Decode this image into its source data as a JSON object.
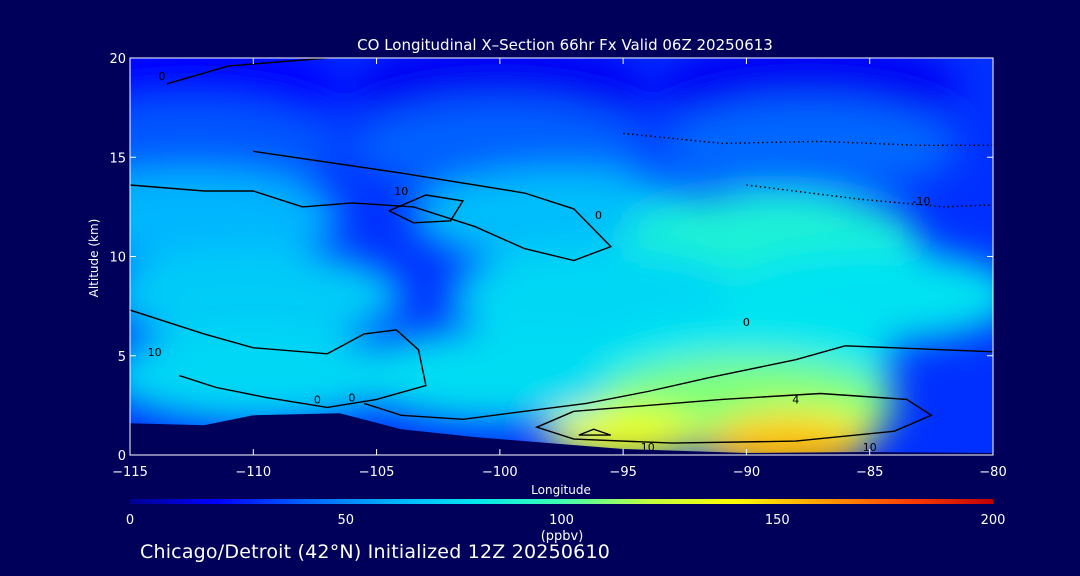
{
  "chart_data": {
    "type": "heatmap",
    "title": "CO Longitudinal X–Section 66hr  Fx Valid 06Z 20250613",
    "xlabel": "Longitude",
    "ylabel": "Altitude (km)",
    "xlim": [
      -115,
      -80
    ],
    "ylim": [
      0,
      20
    ],
    "x_ticks": [
      -115,
      -110,
      -105,
      -100,
      -95,
      -90,
      -85,
      -80
    ],
    "x_tick_labels": [
      "−115",
      "−110",
      "−105",
      "−100",
      "−95",
      "−90",
      "−85",
      "−80"
    ],
    "y_ticks": [
      0,
      5,
      10,
      15,
      20
    ],
    "y_tick_labels": [
      "0",
      "5",
      "10",
      "15",
      "20"
    ],
    "colorbar": {
      "min": 0,
      "max": 200,
      "ticks": [
        0,
        50,
        100,
        150,
        200
      ],
      "tick_labels": [
        "0",
        "50",
        "100",
        "150",
        "200"
      ],
      "unit": "(ppbv)",
      "colors": [
        "#000090",
        "#0000ff",
        "#0060ff",
        "#00b0ff",
        "#00e8f0",
        "#40ffb0",
        "#c0ff40",
        "#ffff00",
        "#ffa000",
        "#ff4000",
        "#c00000"
      ]
    },
    "co_field": [
      {
        "lon": -112.5,
        "alt": 18.5,
        "co": 20
      },
      {
        "lon": -100.0,
        "alt": 18.5,
        "co": 18
      },
      {
        "lon": -87.5,
        "alt": 18.5,
        "co": 18
      },
      {
        "lon": -112.5,
        "alt": 15.5,
        "co": 38
      },
      {
        "lon": -100.0,
        "alt": 15.5,
        "co": 40
      },
      {
        "lon": -87.5,
        "alt": 15.5,
        "co": 42
      },
      {
        "lon": -112.5,
        "alt": 12.0,
        "co": 62
      },
      {
        "lon": -97.5,
        "alt": 12.0,
        "co": 65
      },
      {
        "lon": -89.0,
        "alt": 10.8,
        "co": 88
      },
      {
        "lon": -110.0,
        "alt": 8.0,
        "co": 70
      },
      {
        "lon": -96.0,
        "alt": 8.0,
        "co": 74
      },
      {
        "lon": -85.0,
        "alt": 8.0,
        "co": 78
      },
      {
        "lon": -110.0,
        "alt": 4.0,
        "co": 74
      },
      {
        "lon": -100.0,
        "alt": 4.0,
        "co": 76
      },
      {
        "lon": -90.0,
        "alt": 4.5,
        "co": 80
      },
      {
        "lon": -90.0,
        "alt": 2.5,
        "co": 110
      },
      {
        "lon": -88.0,
        "alt": 1.0,
        "co": 140
      },
      {
        "lon": -95.0,
        "alt": 1.0,
        "co": 135
      },
      {
        "lon": -88.5,
        "alt": 0.4,
        "co": 155
      }
    ],
    "contours": [
      {
        "label": "0",
        "style": "solid",
        "points": [
          [
            -113.5,
            18.7
          ],
          [
            -111,
            19.6
          ],
          [
            -107,
            20
          ]
        ]
      },
      {
        "label": "10",
        "style": "solid",
        "points": [
          [
            -110,
            15.3
          ],
          [
            -104,
            14.2
          ],
          [
            -99,
            13.2
          ],
          [
            -97,
            12.4
          ],
          [
            -95.5,
            10.5
          ],
          [
            -97,
            9.8
          ],
          [
            -99,
            10.4
          ],
          [
            -101,
            11.5
          ],
          [
            -103.5,
            12.5
          ],
          [
            -106,
            12.7
          ],
          [
            -108,
            12.5
          ],
          [
            -110,
            13.3
          ],
          [
            -112,
            13.3
          ],
          [
            -114,
            13.5
          ],
          [
            -115,
            13.6
          ]
        ]
      },
      {
        "label": "10",
        "style": "solid",
        "points": [
          [
            -104.5,
            12.3
          ],
          [
            -103,
            13.1
          ],
          [
            -101.5,
            12.8
          ],
          [
            -102,
            11.8
          ],
          [
            -103.5,
            11.7
          ],
          [
            -104.5,
            12.3
          ]
        ]
      },
      {
        "label": "0",
        "style": "solid",
        "points": [
          [
            -115,
            7.3
          ],
          [
            -112,
            6.1
          ],
          [
            -110,
            5.4
          ],
          [
            -107,
            5.1
          ],
          [
            -105.5,
            6.1
          ],
          [
            -104.2,
            6.3
          ],
          [
            -103.3,
            5.3
          ],
          [
            -103,
            3.5
          ],
          [
            -105,
            2.8
          ],
          [
            -107,
            2.4
          ],
          [
            -109.5,
            2.9
          ],
          [
            -111.5,
            3.4
          ],
          [
            -113,
            4.0
          ]
        ]
      },
      {
        "label": "0",
        "style": "solid",
        "points": [
          [
            -105.5,
            2.6
          ],
          [
            -104,
            2.0
          ],
          [
            -101.5,
            1.8
          ],
          [
            -99,
            2.2
          ],
          [
            -96.5,
            2.6
          ],
          [
            -94,
            3.2
          ],
          [
            -91.5,
            3.9
          ],
          [
            -88,
            4.8
          ],
          [
            -86,
            5.5
          ],
          [
            -84,
            5.4
          ],
          [
            -80,
            5.2
          ]
        ]
      },
      {
        "label": "4",
        "style": "solid",
        "points": [
          [
            -97,
            2.2
          ],
          [
            -94,
            2.5
          ],
          [
            -91,
            2.8
          ],
          [
            -87,
            3.1
          ],
          [
            -83.5,
            2.8
          ],
          [
            -82.5,
            2.0
          ],
          [
            -84,
            1.2
          ],
          [
            -88,
            0.7
          ],
          [
            -93,
            0.6
          ],
          [
            -97,
            0.8
          ],
          [
            -98.5,
            1.4
          ],
          [
            -97,
            2.2
          ]
        ]
      },
      {
        "label": "10",
        "style": "solid",
        "points": [
          [
            -96.8,
            1.0
          ],
          [
            -96.2,
            1.3
          ],
          [
            -95.5,
            1.0
          ],
          [
            -96.8,
            1.0
          ]
        ]
      },
      {
        "label": "10",
        "style": "dotted",
        "points": [
          [
            -95,
            16.2
          ],
          [
            -91,
            15.7
          ],
          [
            -87,
            15.8
          ],
          [
            -83,
            15.6
          ],
          [
            -80,
            15.6
          ]
        ]
      },
      {
        "label": "10",
        "style": "dotted",
        "points": [
          [
            -90,
            13.6
          ],
          [
            -85.5,
            12.9
          ],
          [
            -82,
            12.5
          ],
          [
            -80,
            12.6
          ]
        ]
      }
    ],
    "terrain": [
      [
        -115,
        1.6
      ],
      [
        -112,
        1.5
      ],
      [
        -110,
        2.0
      ],
      [
        -106.5,
        2.1
      ],
      [
        -104,
        1.3
      ],
      [
        -101,
        0.9
      ],
      [
        -98,
        0.6
      ],
      [
        -95,
        0.3
      ],
      [
        -90,
        0.1
      ],
      [
        -85,
        0.15
      ],
      [
        -80,
        0.1
      ]
    ],
    "contour_labels": [
      {
        "text": "0",
        "lon": -113.7,
        "alt": 18.9
      },
      {
        "text": "10",
        "lon": -104.0,
        "alt": 13.1
      },
      {
        "text": "0",
        "lon": -96.0,
        "alt": 11.9
      },
      {
        "text": "-10",
        "lon": -82.9,
        "alt": 12.6
      },
      {
        "text": "0",
        "lon": -90.0,
        "alt": 6.5
      },
      {
        "text": "10",
        "lon": -114.0,
        "alt": 5.0
      },
      {
        "text": "4",
        "lon": -88.0,
        "alt": 2.6
      },
      {
        "text": "0",
        "lon": -107.4,
        "alt": 2.6
      },
      {
        "text": "0",
        "lon": -106.0,
        "alt": 2.7
      },
      {
        "text": "10",
        "lon": -94.0,
        "alt": 0.2
      },
      {
        "text": "10",
        "lon": -85.0,
        "alt": 0.2
      }
    ]
  },
  "footer": {
    "caption": "Chicago/Detroit (42°N) Initialized 12Z 20250610"
  }
}
